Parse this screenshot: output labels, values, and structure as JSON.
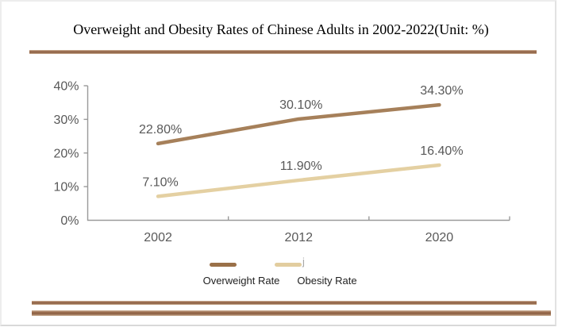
{
  "title": "Overweight and Obesity Rates of Chinese Adults in 2002-2022(Unit: %)",
  "colors": {
    "overweight_line": "#a6805a",
    "obesity_line": "#e4d0a2",
    "legend_overweight_swatch": "#9a7048",
    "legend_obesity_swatch": "#e2cd9f",
    "divider_brown": "#97694b",
    "axis_gray": "#9a9a9a",
    "label_gray": "#595959",
    "legend_text": "#1f1f1f",
    "card_border": "#e2e2e2"
  },
  "chart_data": {
    "type": "line",
    "title": "Overweight and Obesity Rates of Chinese Adults in 2002-2022(Unit: %)",
    "categories": [
      "2002",
      "2012",
      "2020"
    ],
    "series": [
      {
        "name": "Overweight Rate",
        "values": [
          22.8,
          30.1,
          34.3
        ],
        "point_labels": [
          "22.80%",
          "30.10%",
          "34.30%"
        ],
        "color_key": "overweight_line"
      },
      {
        "name": "Obesity Rate",
        "values": [
          7.1,
          11.9,
          16.4
        ],
        "point_labels": [
          "7.10%",
          "11.90%",
          "16.40%"
        ],
        "color_key": "obesity_line"
      }
    ],
    "xlabel": "",
    "ylabel": "",
    "ylim": [
      0,
      40
    ],
    "yticks": [
      {
        "value": 0,
        "label": "0%"
      },
      {
        "value": 10,
        "label": "10%"
      },
      {
        "value": 20,
        "label": "20%"
      },
      {
        "value": 30,
        "label": "30%"
      },
      {
        "value": 40,
        "label": "40%"
      }
    ],
    "grid": false,
    "legend_position": "bottom"
  },
  "legend": {
    "items": [
      {
        "label": "Overweight Rate"
      },
      {
        "label": "Obesity Rate"
      }
    ],
    "artifact": "j"
  }
}
